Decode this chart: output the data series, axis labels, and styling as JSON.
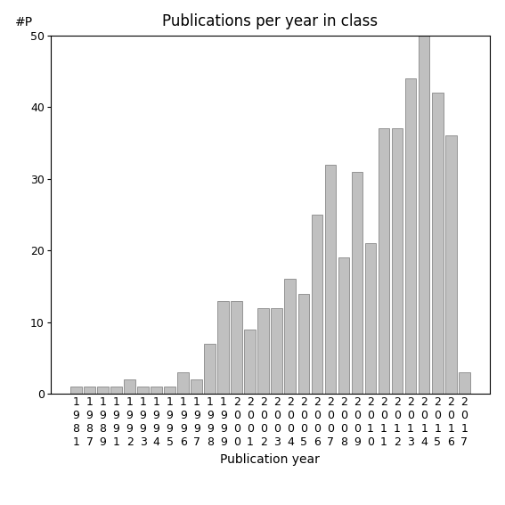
{
  "years": [
    "1981",
    "1987",
    "1989",
    "1991",
    "1992",
    "1993",
    "1994",
    "1995",
    "1996",
    "1997",
    "1998",
    "1999",
    "2000",
    "2001",
    "2002",
    "2003",
    "2004",
    "2005",
    "2006",
    "2007",
    "2008",
    "2009",
    "2010",
    "2011",
    "2012",
    "2013",
    "2014",
    "2015",
    "2016",
    "2017"
  ],
  "values": [
    1,
    1,
    1,
    1,
    2,
    1,
    1,
    1,
    3,
    2,
    7,
    13,
    13,
    9,
    12,
    12,
    16,
    14,
    25,
    32,
    19,
    31,
    21,
    37,
    37,
    44,
    50,
    42,
    36,
    3
  ],
  "bar_color": "#c0c0c0",
  "bar_edgecolor": "#888888",
  "title": "Publications per year in class",
  "xlabel": "Publication year",
  "ylabel": "#P",
  "ylim": [
    0,
    50
  ],
  "yticks": [
    0,
    10,
    20,
    30,
    40,
    50
  ],
  "background_color": "#ffffff",
  "title_fontsize": 12,
  "label_fontsize": 10,
  "tick_fontsize": 9
}
